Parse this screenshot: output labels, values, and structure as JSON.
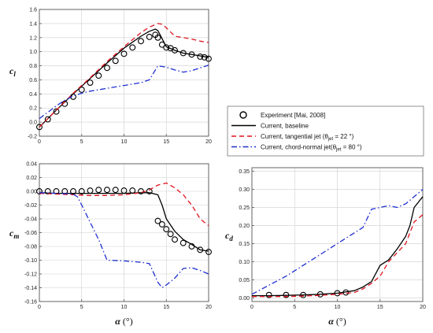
{
  "chart_data": [
    {
      "type": "line",
      "ylabel": "c",
      "ylabel_sub": "l",
      "xlabel": "",
      "xlim": [
        0,
        20
      ],
      "ylim": [
        -0.2,
        1.6
      ],
      "x_ticks": [
        "0",
        "5",
        "10",
        "15",
        "20"
      ],
      "y_ticks": [
        "-0.2",
        "0.0",
        "0.2",
        "0.4",
        "0.6",
        "0.8",
        "1.0",
        "1.2",
        "1.4",
        "1.6"
      ],
      "series": [
        {
          "name": "Experiment [Mai, 2008]",
          "style": "markers",
          "x": [
            0,
            1,
            2,
            3,
            4,
            5,
            6,
            7,
            8,
            9,
            10,
            11,
            12,
            13,
            13.7,
            14,
            14.5,
            15,
            15.5,
            16,
            17,
            18,
            19,
            19.5,
            20
          ],
          "y": [
            -0.07,
            0.04,
            0.15,
            0.26,
            0.36,
            0.46,
            0.56,
            0.66,
            0.77,
            0.87,
            0.97,
            1.06,
            1.15,
            1.21,
            1.24,
            1.2,
            1.1,
            1.06,
            1.05,
            1.02,
            0.98,
            0.96,
            0.93,
            0.92,
            0.9
          ]
        },
        {
          "name": "Current, baseline",
          "style": "solid",
          "x": [
            0,
            2,
            4,
            6,
            8,
            10,
            12,
            13,
            13.7,
            14,
            15,
            16,
            17,
            18,
            19,
            20
          ],
          "y": [
            -0.07,
            0.17,
            0.4,
            0.62,
            0.84,
            1.05,
            1.22,
            1.29,
            1.32,
            1.3,
            1.07,
            1.02,
            0.98,
            0.96,
            0.94,
            0.92
          ]
        },
        {
          "name": "Current, tangential jet",
          "name_sub": "jet",
          "name_suffix": " = 22 °)",
          "style": "dashed",
          "x": [
            0,
            2,
            4,
            6,
            8,
            10,
            12,
            13,
            14,
            14.5,
            15,
            16,
            17,
            18,
            19,
            20
          ],
          "y": [
            -0.07,
            0.17,
            0.41,
            0.63,
            0.86,
            1.07,
            1.27,
            1.35,
            1.4,
            1.39,
            1.34,
            1.22,
            1.2,
            1.18,
            1.15,
            1.13
          ]
        },
        {
          "name": "Current, chord-normal jet",
          "name_sub": "jet",
          "name_suffix": " = 80 °)",
          "style": "dashdot",
          "x": [
            0,
            1,
            2,
            3,
            4,
            5,
            6,
            8,
            10,
            12,
            13,
            14,
            15,
            16,
            17,
            18,
            19,
            20
          ],
          "y": [
            0.05,
            0.14,
            0.23,
            0.31,
            0.37,
            0.41,
            0.44,
            0.48,
            0.52,
            0.56,
            0.6,
            0.8,
            0.78,
            0.74,
            0.71,
            0.73,
            0.77,
            0.81
          ]
        }
      ]
    },
    {
      "type": "line",
      "ylabel": "c",
      "ylabel_sub": "m",
      "xlabel": "α (°)",
      "xlim": [
        0,
        20
      ],
      "ylim": [
        -0.16,
        0.04
      ],
      "x_ticks": [
        "0",
        "5",
        "10",
        "15",
        "20"
      ],
      "y_ticks": [
        "-0.16",
        "-0.14",
        "-0.12",
        "-0.10",
        "-0.08",
        "-0.06",
        "-0.04",
        "-0.02",
        "0.00",
        "0.02",
        "0.04"
      ],
      "series": [
        {
          "name": "Experiment [Mai, 2008]",
          "style": "markers",
          "x": [
            0,
            1,
            2,
            3,
            4,
            5,
            6,
            7,
            8,
            9,
            10,
            11,
            12,
            13,
            14,
            14.5,
            15,
            15.5,
            16,
            17,
            18,
            19,
            20
          ],
          "y": [
            0.0,
            0.0,
            0.0,
            0.0,
            0.0,
            0.0,
            0.001,
            0.002,
            0.002,
            0.002,
            0.001,
            0.001,
            0.0,
            0.0,
            -0.043,
            -0.048,
            -0.055,
            -0.062,
            -0.07,
            -0.075,
            -0.08,
            -0.085,
            -0.088
          ]
        },
        {
          "name": "Current, baseline",
          "style": "solid",
          "x": [
            0,
            2,
            4,
            6,
            8,
            10,
            12,
            13,
            14,
            14.5,
            15,
            16,
            17,
            18,
            19,
            20
          ],
          "y": [
            -0.002,
            -0.003,
            -0.003,
            -0.003,
            -0.003,
            -0.003,
            -0.002,
            -0.002,
            -0.005,
            -0.02,
            -0.04,
            -0.058,
            -0.07,
            -0.077,
            -0.085,
            -0.087
          ]
        },
        {
          "name": "Current, tangential jet",
          "style": "dashed",
          "x": [
            0,
            2,
            4,
            6,
            8,
            10,
            12,
            13,
            14,
            15,
            16,
            17,
            18,
            19,
            20
          ],
          "y": [
            -0.003,
            -0.004,
            -0.005,
            -0.006,
            -0.006,
            -0.005,
            -0.002,
            0.002,
            0.009,
            0.012,
            0.005,
            -0.005,
            -0.02,
            -0.04,
            -0.05
          ]
        },
        {
          "name": "Current, chord-normal jet",
          "style": "dashdot",
          "x": [
            0,
            2,
            4,
            4.5,
            5,
            6,
            7,
            8,
            10,
            12,
            13,
            14,
            14.5,
            15,
            16,
            17,
            18,
            19,
            20
          ],
          "y": [
            -0.002,
            -0.003,
            -0.004,
            -0.008,
            -0.02,
            -0.045,
            -0.07,
            -0.1,
            -0.101,
            -0.103,
            -0.105,
            -0.132,
            -0.14,
            -0.136,
            -0.126,
            -0.112,
            -0.111,
            -0.115,
            -0.12
          ]
        }
      ]
    },
    {
      "type": "line",
      "ylabel": "c",
      "ylabel_sub": "d",
      "xlabel": "α (°)",
      "xlim": [
        0,
        20
      ],
      "ylim": [
        -0.01,
        0.36
      ],
      "x_ticks": [
        "0",
        "5",
        "10",
        "15",
        "20"
      ],
      "y_ticks": [
        "0.00",
        "0.05",
        "0.10",
        "0.15",
        "0.20",
        "0.25",
        "0.30",
        "0.35"
      ],
      "series": [
        {
          "name": "Experiment [Mai, 2008]",
          "style": "markers",
          "x": [
            2,
            4,
            6,
            8,
            10,
            11
          ],
          "y": [
            0.008,
            0.008,
            0.008,
            0.01,
            0.013,
            0.015
          ]
        },
        {
          "name": "Current, baseline",
          "style": "solid",
          "x": [
            0,
            2,
            4,
            6,
            8,
            10,
            12,
            13,
            14,
            15,
            16,
            17,
            18,
            18.5,
            19,
            20
          ],
          "y": [
            0.006,
            0.006,
            0.007,
            0.008,
            0.01,
            0.013,
            0.02,
            0.03,
            0.045,
            0.09,
            0.105,
            0.135,
            0.17,
            0.2,
            0.25,
            0.28
          ]
        },
        {
          "name": "Current, tangential jet",
          "style": "dashed",
          "x": [
            0,
            2,
            4,
            6,
            8,
            10,
            12,
            13,
            14,
            15,
            16,
            17,
            18,
            19,
            20
          ],
          "y": [
            0.004,
            0.004,
            0.004,
            0.005,
            0.007,
            0.01,
            0.015,
            0.025,
            0.04,
            0.06,
            0.1,
            0.125,
            0.15,
            0.21,
            0.23
          ]
        },
        {
          "name": "Current, chord-normal jet",
          "style": "dashdot",
          "x": [
            0,
            2,
            4,
            6,
            8,
            10,
            12,
            13,
            14,
            15,
            16,
            17,
            18,
            19,
            20
          ],
          "y": [
            0.01,
            0.035,
            0.06,
            0.09,
            0.12,
            0.15,
            0.18,
            0.195,
            0.245,
            0.25,
            0.255,
            0.25,
            0.26,
            0.28,
            0.3
          ]
        }
      ]
    }
  ],
  "legend": {
    "entries": [
      {
        "text": "Experiment [Mai, 2008]",
        "sub": "",
        "suffix": ""
      },
      {
        "text": "Current, baseline",
        "sub": "",
        "suffix": ""
      },
      {
        "text": "Current, tangential jet  (θ",
        "sub": "jet",
        "suffix": " = 22 °)"
      },
      {
        "text": "Current, chord-normal jet(θ",
        "sub": "jet",
        "suffix": " = 80 °)"
      }
    ]
  },
  "colors": {
    "experiment": "#000000",
    "baseline": "#000000",
    "tangential": "#e0141e",
    "chord_normal": "#1f2fd0",
    "axes": "#555555",
    "grid": "#cfcfcf"
  }
}
